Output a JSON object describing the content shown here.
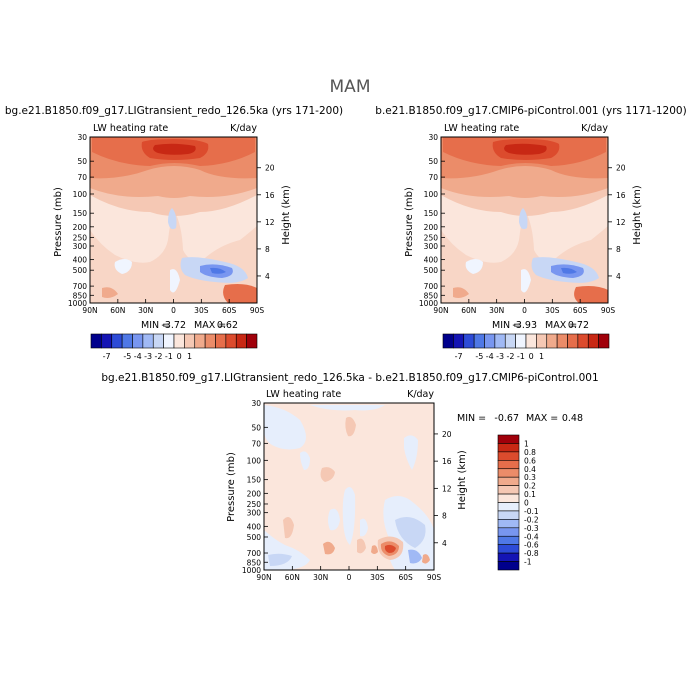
{
  "figure": {
    "title": "MAM"
  },
  "chart_data": [
    {
      "type": "heatmap",
      "case_title": "bg.e21.B1850.f09_g17.LIGtransient_redo_126.5ka (yrs 171-200)",
      "variable": "LW heating rate",
      "units": "K/day",
      "ylabel": "Pressure (mb)",
      "y2label": "Height (km)",
      "x_ticks": [
        "90N",
        "60N",
        "30N",
        "0",
        "30S",
        "60S",
        "90S"
      ],
      "y_ticks": [
        "30",
        "50",
        "70",
        "100",
        "150",
        "200",
        "250",
        "300",
        "400",
        "500",
        "700",
        "850",
        "1000"
      ],
      "y2_ticks": [
        "20",
        "16",
        "12",
        "8",
        "4"
      ],
      "min_label": "MIN =",
      "min": "-3.72",
      "max_label": "MAX =",
      "max": "0.62"
    },
    {
      "type": "heatmap",
      "case_title": "b.e21.B1850.f09_g17.CMIP6-piControl.001 (yrs 1171-1200)",
      "variable": "LW heating rate",
      "units": "K/day",
      "ylabel": "Pressure (mb)",
      "y2label": "Height (km)",
      "x_ticks": [
        "90N",
        "60N",
        "30N",
        "0",
        "30S",
        "60S",
        "90S"
      ],
      "y_ticks": [
        "30",
        "50",
        "70",
        "100",
        "150",
        "200",
        "250",
        "300",
        "400",
        "500",
        "700",
        "850",
        "1000"
      ],
      "y2_ticks": [
        "20",
        "16",
        "12",
        "8",
        "4"
      ],
      "min_label": "MIN =",
      "min": "-3.93",
      "max_label": "MAX =",
      "max": "0.72"
    },
    {
      "type": "heatmap",
      "case_title": "bg.e21.B1850.f09_g17.LIGtransient_redo_126.5ka - b.e21.B1850.f09_g17.CMIP6-piControl.001",
      "variable": "LW heating rate",
      "units": "K/day",
      "ylabel": "Pressure (mb)",
      "y2label": "Height (km)",
      "x_ticks": [
        "90N",
        "60N",
        "30N",
        "0",
        "30S",
        "60S",
        "90S"
      ],
      "y_ticks": [
        "30",
        "50",
        "70",
        "100",
        "150",
        "200",
        "250",
        "300",
        "400",
        "500",
        "700",
        "850",
        "1000"
      ],
      "y2_ticks": [
        "20",
        "16",
        "12",
        "8",
        "4"
      ],
      "min_label": "MIN =",
      "min": "-0.67",
      "max_label": "MAX =",
      "max": "0.48"
    }
  ],
  "colorbar_top": {
    "labels": [
      "-7",
      "-5",
      "-4",
      "-3",
      "-2",
      "-1",
      "0",
      "1"
    ],
    "colors": [
      "#00008c",
      "#1414b4",
      "#2d4bd7",
      "#4f78e6",
      "#7896f0",
      "#a0b9f5",
      "#c8d7f5",
      "#f0f5ff",
      "#fbe6dc",
      "#f5c8b4",
      "#f0aa8c",
      "#eb8c69",
      "#e66e4b",
      "#dc4b2d",
      "#c82814",
      "#a0000a"
    ]
  },
  "colorbar_diff": {
    "labels": [
      "1",
      "0.8",
      "0.6",
      "0.4",
      "0.3",
      "0.2",
      "0.1",
      "0",
      "-0.1",
      "-0.2",
      "-0.3",
      "-0.4",
      "-0.6",
      "-0.8",
      "-1"
    ],
    "colors": [
      "#a0000a",
      "#c82814",
      "#dc4b2d",
      "#e66e4b",
      "#eb8c69",
      "#f0aa8c",
      "#f5c8b4",
      "#fbe6dc",
      "#e6eefc",
      "#c8d7f5",
      "#a0b9f5",
      "#7896f0",
      "#4f78e6",
      "#2d4bd7",
      "#1414b4",
      "#00008c"
    ]
  }
}
